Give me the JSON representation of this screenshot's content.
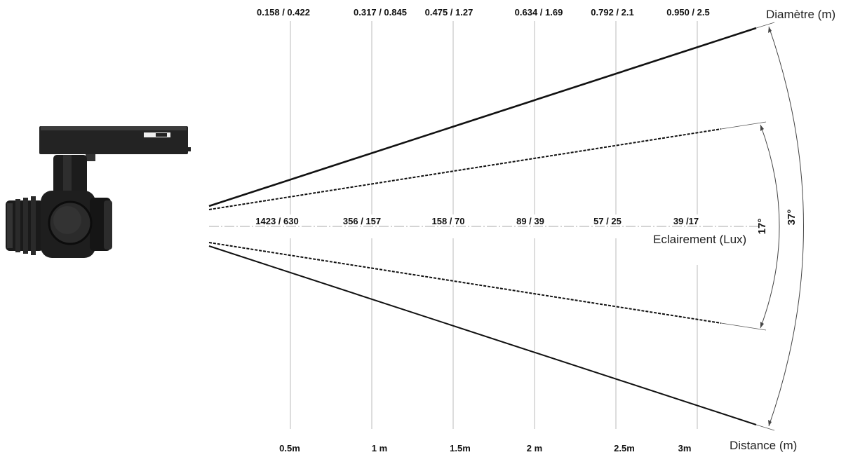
{
  "titles": {
    "diameter": "Diamètre (m)",
    "illuminance": "Eclairement (Lux)",
    "distance": "Distance (m)"
  },
  "angles": {
    "narrow": "17°",
    "wide": "37°"
  },
  "columns": [
    {
      "distance": "0.5m",
      "diameter": "0.158 / 0.422",
      "lux": "1423 / 630"
    },
    {
      "distance": "1 m",
      "diameter": "0.317 / 0.845",
      "lux": "356 / 157"
    },
    {
      "distance": "1.5m",
      "diameter": "0.475 / 1.27",
      "lux": "158 / 70"
    },
    {
      "distance": "2 m",
      "diameter": "0.634 / 1.69",
      "lux": "89 / 39"
    },
    {
      "distance": "2.5m",
      "diameter": "0.792 / 2.1",
      "lux": "57 / 25"
    },
    {
      "distance": "3m",
      "diameter": "0.950 / 2.5",
      "lux": "39 /17"
    }
  ],
  "colors": {
    "beam": "#111111",
    "guide": "#bbbbbb",
    "fixture_dark": "#1e1e1e",
    "fixture_mid": "#2c2c2c"
  }
}
